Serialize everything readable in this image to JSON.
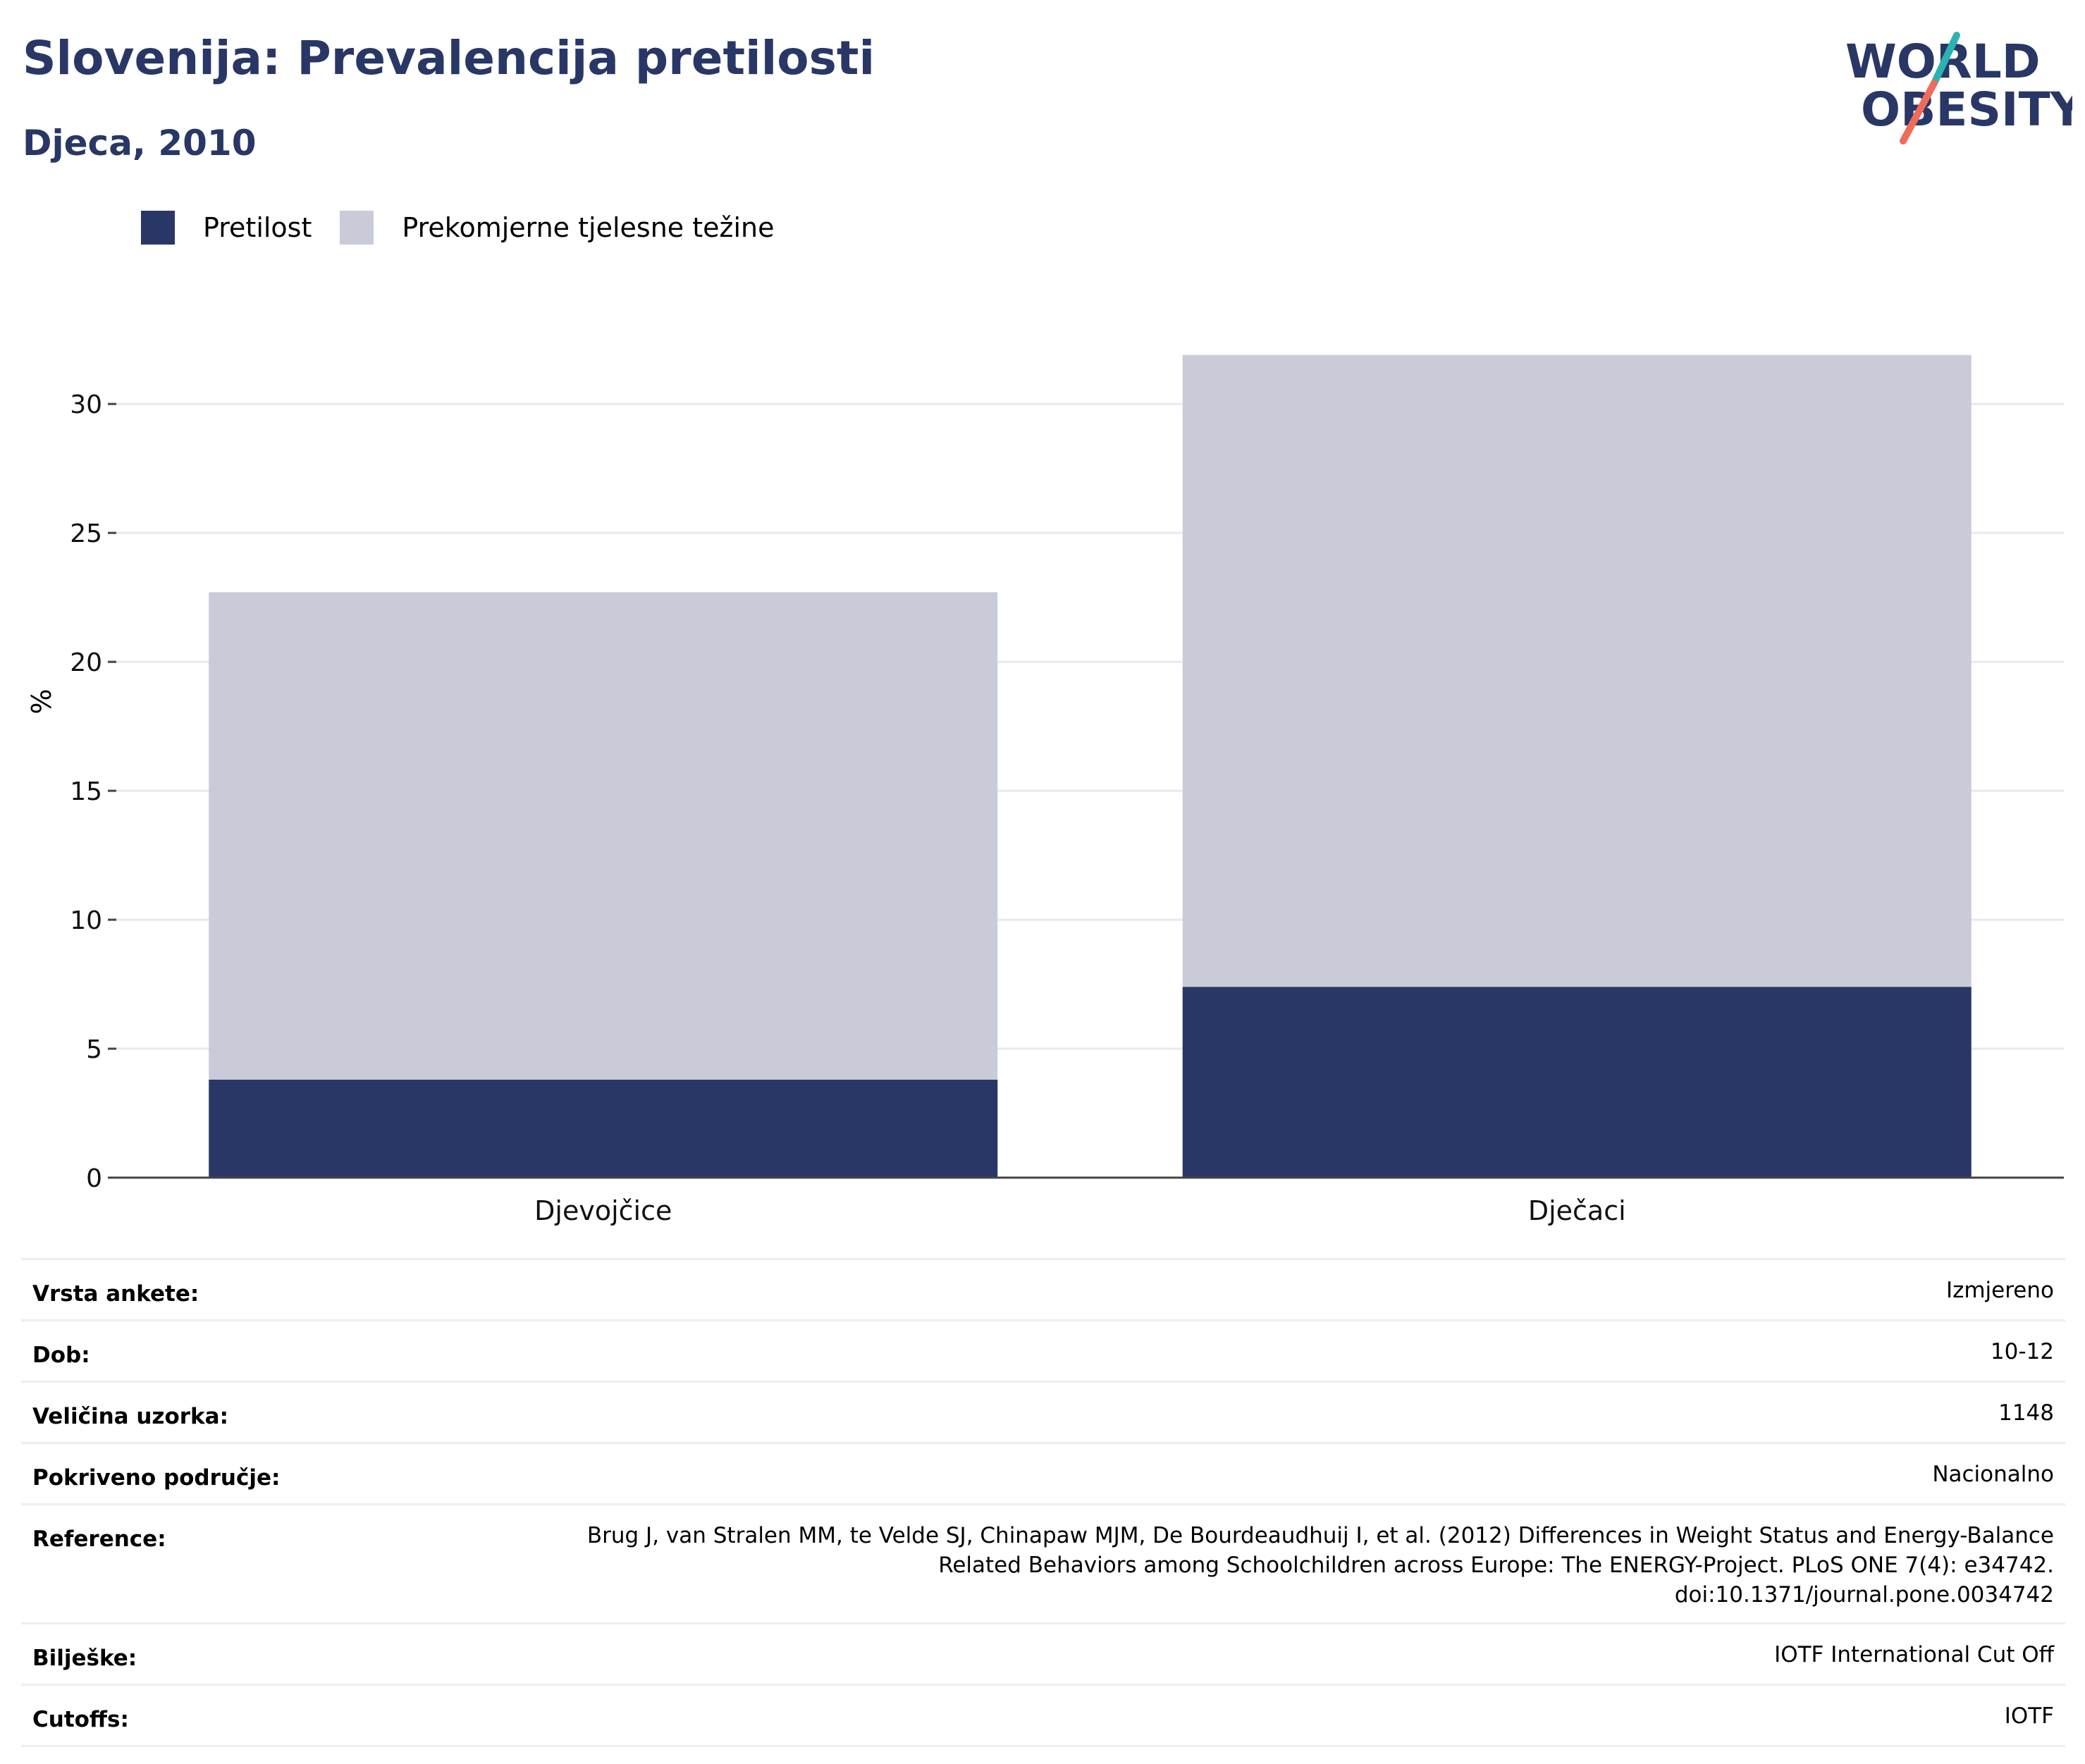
{
  "header": {
    "title": "Slovenija: Prevalencija pretilosti",
    "subtitle": "Djeca, 2010"
  },
  "logo": {
    "line1": "WORLD",
    "line2": "OBESITY"
  },
  "colors": {
    "obesity": "#283765",
    "overweight": "#c9ccd8",
    "title": "#283765",
    "logo_teal": "#2bb3b1",
    "logo_coral": "#ef6b5b"
  },
  "legend": {
    "items": [
      {
        "label": "Pretilost",
        "color": "#283765"
      },
      {
        "label": "Prekomjerne tjelesne težine",
        "color": "#c9ccd8"
      }
    ]
  },
  "chart_data": {
    "type": "bar",
    "stacked": true,
    "categories": [
      "Djevojčice",
      "Dječaci"
    ],
    "series": [
      {
        "name": "Pretilost",
        "values": [
          3.8,
          7.4
        ]
      },
      {
        "name": "Prekomjerne tjelesne težine",
        "values": [
          18.9,
          24.5
        ]
      }
    ],
    "ylabel": "%",
    "ylim": [
      0,
      32
    ],
    "yticks": [
      0,
      5,
      10,
      15,
      20,
      25,
      30
    ],
    "grid": true,
    "legend_position": "top-left"
  },
  "info": {
    "rows": [
      {
        "label": "Vrsta ankete:",
        "value": [
          "Izmjereno"
        ]
      },
      {
        "label": "Dob:",
        "value": [
          "10-12"
        ]
      },
      {
        "label": "Veličina uzorka:",
        "value": [
          "1148"
        ]
      },
      {
        "label": "Pokriveno područje:",
        "value": [
          "Nacionalno"
        ]
      },
      {
        "label": "Reference:",
        "value": [
          "Brug J, van Stralen MM, te Velde SJ, Chinapaw MJM, De Bourdeaudhuij I, et al. (2012) Differences in Weight Status and Energy-Balance",
          "Related Behaviors among Schoolchildren across Europe: The ENERGY-Project. PLoS ONE 7(4): e34742.",
          "doi:10.1371/journal.pone.0034742"
        ]
      },
      {
        "label": "Bilješke:",
        "value": [
          "IOTF International Cut Off"
        ]
      },
      {
        "label": "Cutoffs:",
        "value": [
          "IOTF"
        ]
      }
    ]
  }
}
